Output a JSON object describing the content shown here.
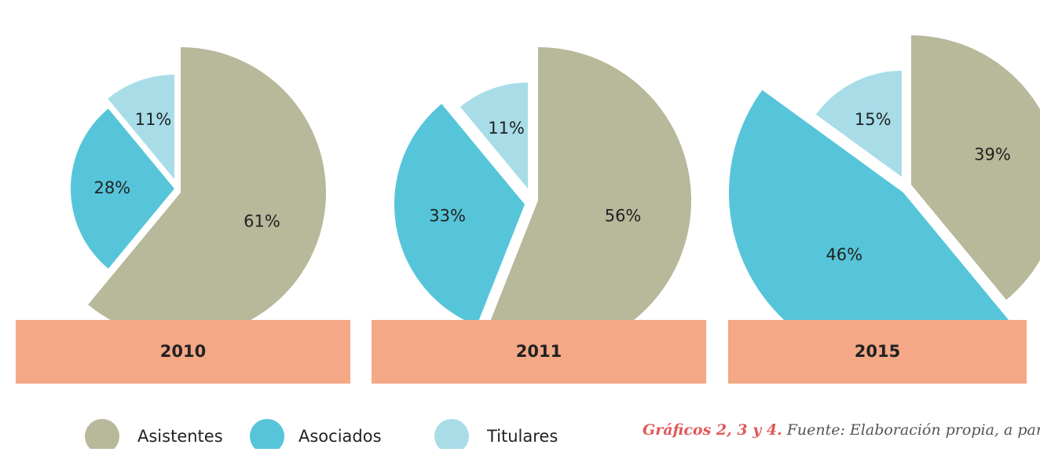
{
  "chart_data": [
    {
      "type": "pie",
      "title": "2010",
      "categories": [
        "Asistentes",
        "Asociados",
        "Titulares"
      ],
      "values": [
        61,
        28,
        11
      ],
      "value_labels": [
        "61%",
        "28%",
        "11%"
      ],
      "colors": [
        "#b8b89a",
        "#56c5d9",
        "#a8dde8"
      ]
    },
    {
      "type": "pie",
      "title": "2011",
      "categories": [
        "Asistentes",
        "Asociados",
        "Titulares"
      ],
      "values": [
        56,
        33,
        11
      ],
      "value_labels": [
        "56%",
        "33%",
        "11%"
      ],
      "colors": [
        "#b8b89a",
        "#56c5d9",
        "#a8dde8"
      ]
    },
    {
      "type": "pie",
      "title": "2015",
      "categories": [
        "Asistentes",
        "Asociados",
        "Titulares"
      ],
      "values": [
        39,
        46,
        15
      ],
      "value_labels": [
        "39%",
        "46%",
        "15%"
      ],
      "colors": [
        "#b8b89a",
        "#56c5d9",
        "#a8dde8"
      ]
    }
  ],
  "caption": {
    "lead": "Gráficos 2, 3 y 4.",
    "text": "Fuente: Elaboración propia, a partir"
  }
}
